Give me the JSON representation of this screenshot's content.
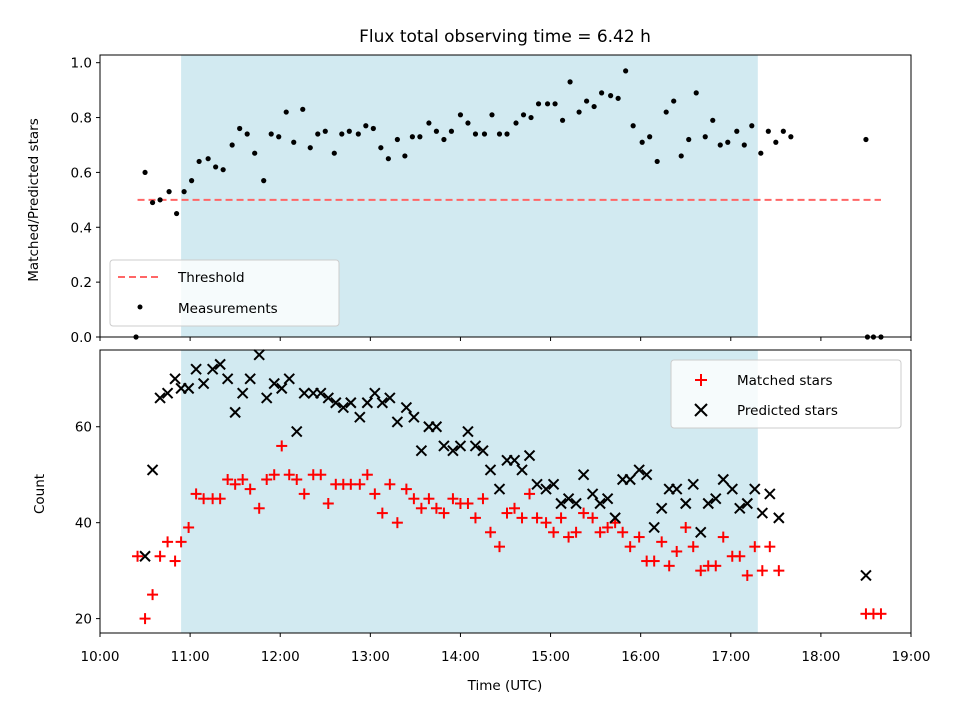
{
  "chart_data": [
    {
      "type": "scatter",
      "title": "Flux total observing time = 6.42 h",
      "ylabel": "Matched/Predicted stars",
      "xlabel": "",
      "xlim": [
        "10:00",
        "19:00"
      ],
      "ylim": [
        0,
        1.0
      ],
      "yticks": [
        "0.0",
        "0.2",
        "0.4",
        "0.6",
        "0.8",
        "1.0"
      ],
      "grid": false,
      "legend_position": "lower-left",
      "shaded_span": {
        "start": "10:54",
        "end": "17:18",
        "color": "#add8e6"
      },
      "threshold": {
        "name": "Threshold",
        "value": 0.5,
        "x_start": "10:25",
        "x_end": "18:40",
        "color": "#ff6666",
        "style": "dashed"
      },
      "series": [
        {
          "name": "Measurements",
          "marker": "dot",
          "color": "#000000",
          "points": [
            [
              "10:24",
              0.0
            ],
            [
              "10:30",
              0.6
            ],
            [
              "10:35",
              0.49
            ],
            [
              "10:40",
              0.5
            ],
            [
              "10:46",
              0.53
            ],
            [
              "10:51",
              0.45
            ],
            [
              "10:56",
              0.53
            ],
            [
              "11:01",
              0.57
            ],
            [
              "11:06",
              0.64
            ],
            [
              "11:12",
              0.65
            ],
            [
              "11:17",
              0.62
            ],
            [
              "11:22",
              0.61
            ],
            [
              "11:28",
              0.7
            ],
            [
              "11:33",
              0.76
            ],
            [
              "11:38",
              0.74
            ],
            [
              "11:43",
              0.67
            ],
            [
              "11:49",
              0.57
            ],
            [
              "11:54",
              0.74
            ],
            [
              "11:59",
              0.73
            ],
            [
              "12:04",
              0.82
            ],
            [
              "12:09",
              0.71
            ],
            [
              "12:15",
              0.83
            ],
            [
              "12:20",
              0.69
            ],
            [
              "12:25",
              0.74
            ],
            [
              "12:30",
              0.75
            ],
            [
              "12:36",
              0.67
            ],
            [
              "12:41",
              0.74
            ],
            [
              "12:46",
              0.75
            ],
            [
              "12:52",
              0.74
            ],
            [
              "12:57",
              0.77
            ],
            [
              "13:02",
              0.76
            ],
            [
              "13:07",
              0.69
            ],
            [
              "13:12",
              0.65
            ],
            [
              "13:18",
              0.72
            ],
            [
              "13:23",
              0.66
            ],
            [
              "13:28",
              0.73
            ],
            [
              "13:33",
              0.73
            ],
            [
              "13:39",
              0.78
            ],
            [
              "13:44",
              0.75
            ],
            [
              "13:49",
              0.72
            ],
            [
              "13:54",
              0.75
            ],
            [
              "14:00",
              0.81
            ],
            [
              "14:05",
              0.78
            ],
            [
              "14:10",
              0.74
            ],
            [
              "14:16",
              0.74
            ],
            [
              "14:21",
              0.81
            ],
            [
              "14:26",
              0.74
            ],
            [
              "14:31",
              0.74
            ],
            [
              "14:37",
              0.78
            ],
            [
              "14:42",
              0.81
            ],
            [
              "14:47",
              0.8
            ],
            [
              "14:52",
              0.85
            ],
            [
              "14:58",
              0.85
            ],
            [
              "15:03",
              0.85
            ],
            [
              "15:08",
              0.79
            ],
            [
              "15:13",
              0.93
            ],
            [
              "15:19",
              0.82
            ],
            [
              "15:24",
              0.86
            ],
            [
              "15:29",
              0.84
            ],
            [
              "15:34",
              0.89
            ],
            [
              "15:40",
              0.88
            ],
            [
              "15:45",
              0.87
            ],
            [
              "15:50",
              0.97
            ],
            [
              "15:55",
              0.77
            ],
            [
              "16:01",
              0.71
            ],
            [
              "16:06",
              0.73
            ],
            [
              "16:11",
              0.64
            ],
            [
              "16:17",
              0.82
            ],
            [
              "16:22",
              0.86
            ],
            [
              "16:27",
              0.66
            ],
            [
              "16:32",
              0.72
            ],
            [
              "16:37",
              0.89
            ],
            [
              "16:43",
              0.73
            ],
            [
              "16:48",
              0.79
            ],
            [
              "16:53",
              0.7
            ],
            [
              "16:58",
              0.71
            ],
            [
              "17:04",
              0.75
            ],
            [
              "17:09",
              0.7
            ],
            [
              "17:14",
              0.77
            ],
            [
              "17:20",
              0.67
            ],
            [
              "17:25",
              0.75
            ],
            [
              "17:30",
              0.71
            ],
            [
              "17:35",
              0.75
            ],
            [
              "17:40",
              0.73
            ],
            [
              "18:30",
              0.72
            ],
            [
              "18:31",
              0.0
            ],
            [
              "18:35",
              0.0
            ],
            [
              "18:40",
              0.0
            ]
          ]
        }
      ]
    },
    {
      "type": "scatter",
      "title": "",
      "ylabel": "Count",
      "xlabel": "Time (UTC)",
      "xlim": [
        "10:00",
        "19:00"
      ],
      "ylim": [
        17,
        76
      ],
      "xticks": [
        "10:00",
        "11:00",
        "12:00",
        "13:00",
        "14:00",
        "15:00",
        "16:00",
        "17:00",
        "18:00",
        "19:00"
      ],
      "yticks": [
        "20",
        "40",
        "60"
      ],
      "grid": false,
      "legend_position": "top-right",
      "shaded_span": {
        "start": "10:54",
        "end": "17:18",
        "color": "#add8e6"
      },
      "series": [
        {
          "name": "Matched stars",
          "marker": "plus",
          "color": "#ff0000",
          "points": [
            [
              "10:25",
              33
            ],
            [
              "10:30",
              20
            ],
            [
              "10:35",
              25
            ],
            [
              "10:40",
              33
            ],
            [
              "10:45",
              36
            ],
            [
              "10:50",
              32
            ],
            [
              "10:54",
              36
            ],
            [
              "10:59",
              39
            ],
            [
              "11:04",
              46
            ],
            [
              "11:09",
              45
            ],
            [
              "11:15",
              45
            ],
            [
              "11:20",
              45
            ],
            [
              "11:25",
              49
            ],
            [
              "11:30",
              48
            ],
            [
              "11:35",
              49
            ],
            [
              "11:40",
              47
            ],
            [
              "11:46",
              43
            ],
            [
              "11:51",
              49
            ],
            [
              "11:56",
              50
            ],
            [
              "12:01",
              56
            ],
            [
              "12:06",
              50
            ],
            [
              "12:11",
              49
            ],
            [
              "12:16",
              46
            ],
            [
              "12:22",
              50
            ],
            [
              "12:27",
              50
            ],
            [
              "12:32",
              44
            ],
            [
              "12:37",
              48
            ],
            [
              "12:42",
              48
            ],
            [
              "12:47",
              48
            ],
            [
              "12:53",
              48
            ],
            [
              "12:58",
              50
            ],
            [
              "13:03",
              46
            ],
            [
              "13:08",
              42
            ],
            [
              "13:13",
              48
            ],
            [
              "13:18",
              40
            ],
            [
              "13:24",
              47
            ],
            [
              "13:29",
              45
            ],
            [
              "13:34",
              43
            ],
            [
              "13:39",
              45
            ],
            [
              "13:44",
              43
            ],
            [
              "13:49",
              42
            ],
            [
              "13:55",
              45
            ],
            [
              "14:00",
              44
            ],
            [
              "14:05",
              44
            ],
            [
              "14:10",
              41
            ],
            [
              "14:15",
              45
            ],
            [
              "14:20",
              38
            ],
            [
              "14:26",
              35
            ],
            [
              "14:31",
              42
            ],
            [
              "14:36",
              43
            ],
            [
              "14:41",
              41
            ],
            [
              "14:46",
              46
            ],
            [
              "14:51",
              41
            ],
            [
              "14:57",
              40
            ],
            [
              "15:02",
              38
            ],
            [
              "15:07",
              41
            ],
            [
              "15:12",
              37
            ],
            [
              "15:17",
              38
            ],
            [
              "15:22",
              42
            ],
            [
              "15:28",
              41
            ],
            [
              "15:33",
              38
            ],
            [
              "15:38",
              39
            ],
            [
              "15:43",
              40
            ],
            [
              "15:48",
              38
            ],
            [
              "15:53",
              35
            ],
            [
              "15:59",
              37
            ],
            [
              "16:04",
              32
            ],
            [
              "16:09",
              32
            ],
            [
              "16:14",
              36
            ],
            [
              "16:19",
              31
            ],
            [
              "16:24",
              34
            ],
            [
              "16:30",
              39
            ],
            [
              "16:35",
              35
            ],
            [
              "16:40",
              30
            ],
            [
              "16:45",
              31
            ],
            [
              "16:50",
              31
            ],
            [
              "16:55",
              37
            ],
            [
              "17:01",
              33
            ],
            [
              "17:06",
              33
            ],
            [
              "17:11",
              29
            ],
            [
              "17:16",
              35
            ],
            [
              "17:21",
              30
            ],
            [
              "17:26",
              35
            ],
            [
              "17:32",
              30
            ],
            [
              "18:30",
              21
            ],
            [
              "18:35",
              21
            ],
            [
              "18:40",
              21
            ]
          ]
        },
        {
          "name": "Predicted stars",
          "marker": "x",
          "color": "#000000",
          "points": [
            [
              "10:30",
              33
            ],
            [
              "10:35",
              51
            ],
            [
              "10:40",
              66
            ],
            [
              "10:45",
              67
            ],
            [
              "10:50",
              70
            ],
            [
              "10:54",
              68
            ],
            [
              "10:59",
              68
            ],
            [
              "11:04",
              72
            ],
            [
              "11:09",
              69
            ],
            [
              "11:15",
              72
            ],
            [
              "11:20",
              73
            ],
            [
              "11:25",
              70
            ],
            [
              "11:30",
              63
            ],
            [
              "11:35",
              67
            ],
            [
              "11:40",
              70
            ],
            [
              "11:46",
              75
            ],
            [
              "11:51",
              66
            ],
            [
              "11:56",
              69
            ],
            [
              "12:01",
              68
            ],
            [
              "12:06",
              70
            ],
            [
              "12:11",
              59
            ],
            [
              "12:16",
              67
            ],
            [
              "12:22",
              67
            ],
            [
              "12:27",
              67
            ],
            [
              "12:32",
              66
            ],
            [
              "12:37",
              65
            ],
            [
              "12:42",
              64
            ],
            [
              "12:47",
              65
            ],
            [
              "12:53",
              62
            ],
            [
              "12:58",
              65
            ],
            [
              "13:03",
              67
            ],
            [
              "13:08",
              65
            ],
            [
              "13:13",
              66
            ],
            [
              "13:18",
              61
            ],
            [
              "13:24",
              64
            ],
            [
              "13:29",
              62
            ],
            [
              "13:34",
              55
            ],
            [
              "13:39",
              60
            ],
            [
              "13:44",
              60
            ],
            [
              "13:49",
              56
            ],
            [
              "13:55",
              55
            ],
            [
              "14:00",
              56
            ],
            [
              "14:05",
              59
            ],
            [
              "14:10",
              56
            ],
            [
              "14:15",
              55
            ],
            [
              "14:20",
              51
            ],
            [
              "14:26",
              47
            ],
            [
              "14:31",
              53
            ],
            [
              "14:36",
              53
            ],
            [
              "14:41",
              51
            ],
            [
              "14:46",
              54
            ],
            [
              "14:51",
              48
            ],
            [
              "14:57",
              47
            ],
            [
              "15:02",
              48
            ],
            [
              "15:07",
              44
            ],
            [
              "15:12",
              45
            ],
            [
              "15:17",
              44
            ],
            [
              "15:22",
              50
            ],
            [
              "15:28",
              46
            ],
            [
              "15:33",
              44
            ],
            [
              "15:38",
              45
            ],
            [
              "15:43",
              41
            ],
            [
              "15:48",
              49
            ],
            [
              "15:53",
              49
            ],
            [
              "15:59",
              51
            ],
            [
              "16:04",
              50
            ],
            [
              "16:09",
              39
            ],
            [
              "16:14",
              43
            ],
            [
              "16:19",
              47
            ],
            [
              "16:24",
              47
            ],
            [
              "16:30",
              44
            ],
            [
              "16:35",
              48
            ],
            [
              "16:40",
              38
            ],
            [
              "16:45",
              44
            ],
            [
              "16:50",
              45
            ],
            [
              "16:55",
              49
            ],
            [
              "17:01",
              47
            ],
            [
              "17:06",
              43
            ],
            [
              "17:11",
              44
            ],
            [
              "17:16",
              47
            ],
            [
              "17:21",
              42
            ],
            [
              "17:26",
              46
            ],
            [
              "17:32",
              41
            ],
            [
              "18:30",
              29
            ]
          ]
        }
      ]
    }
  ]
}
